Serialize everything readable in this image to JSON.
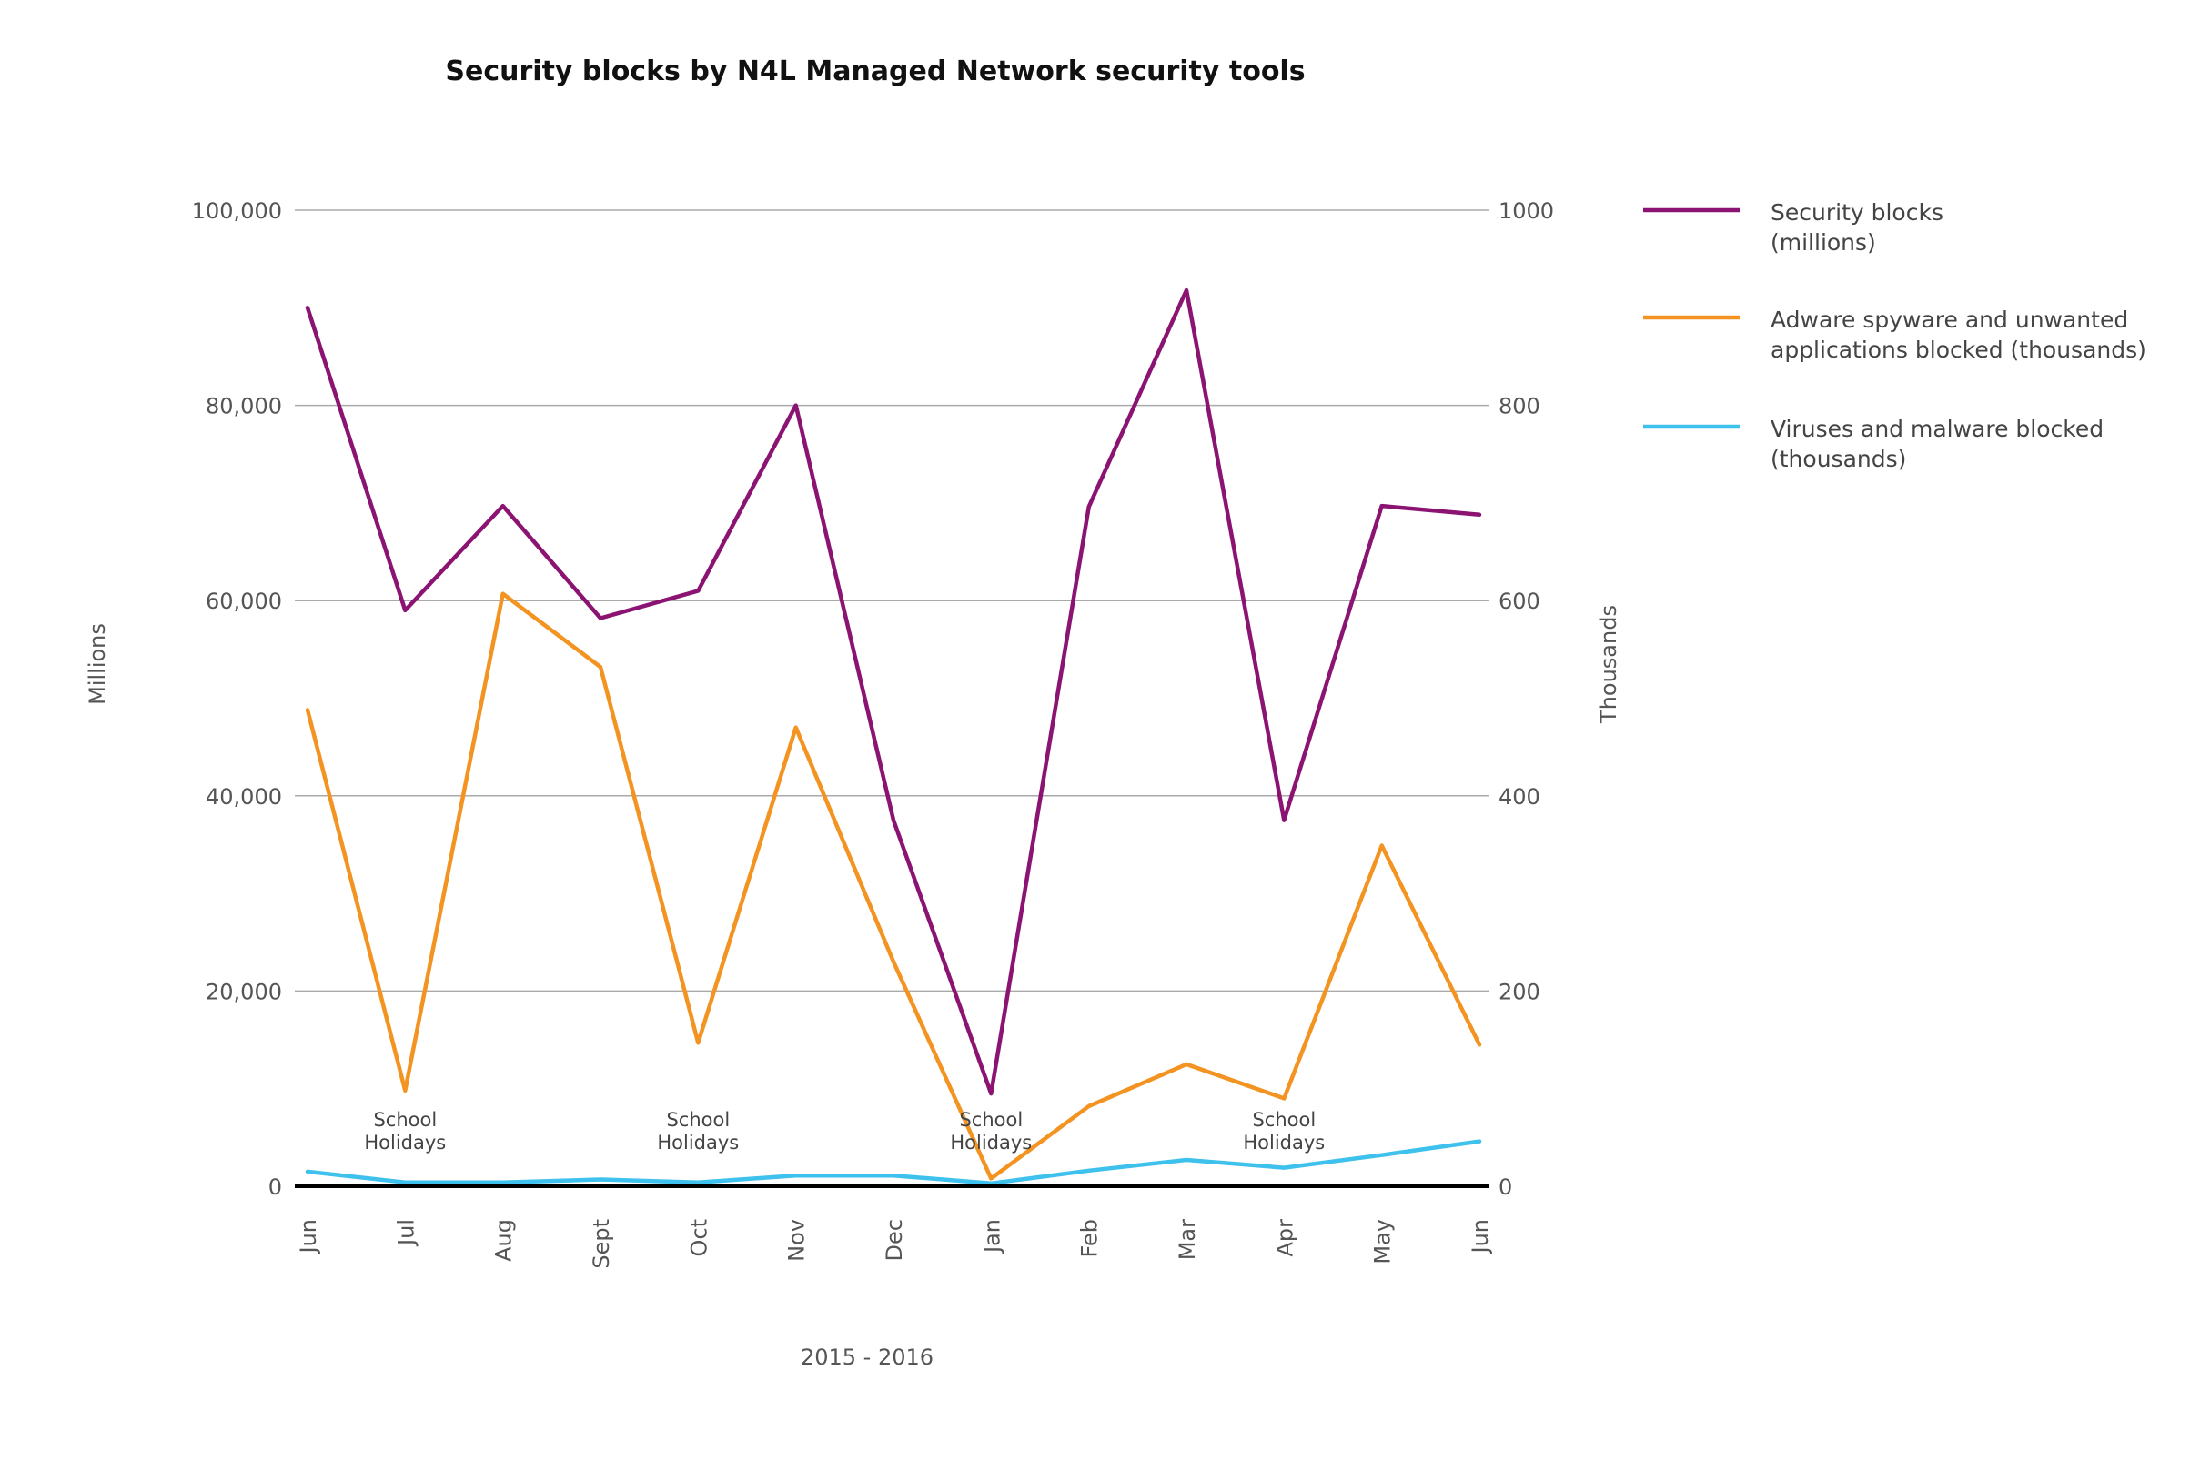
{
  "chart_data": {
    "type": "line",
    "title": "Security blocks by N4L Managed Network security tools",
    "xlabel": "2015 - 2016",
    "ylabel_left": "Millions",
    "ylabel_right": "Thousands",
    "categories": [
      "Jun",
      "Jul",
      "Aug",
      "Sept",
      "Oct",
      "Nov",
      "Dec",
      "Jan",
      "Feb",
      "Mar",
      "Apr",
      "May",
      "Jun"
    ],
    "ylim_left": [
      0,
      100000
    ],
    "ylim_right": [
      0,
      1000
    ],
    "yticks_left": [
      "0",
      "20,000",
      "40,000",
      "60,000",
      "80,000",
      "100,000"
    ],
    "yticks_right": [
      "0",
      "200",
      "400",
      "600",
      "800",
      "1000"
    ],
    "grid": true,
    "legend_position": "right",
    "series": [
      {
        "name": "Security blocks (millions)",
        "legend_lines": [
          "Security blocks",
          "(millions)"
        ],
        "axis": "left",
        "color": "#8b1372",
        "values": [
          90000,
          59000,
          69700,
          58200,
          61000,
          80000,
          37500,
          9500,
          69600,
          91800,
          37500,
          69700,
          68800
        ]
      },
      {
        "name": "Adware spyware and unwanted applications blocked (thousands)",
        "legend_lines": [
          "Adware spyware and unwanted",
          "applications  blocked (thousands)"
        ],
        "axis": "right",
        "color": "#f39422",
        "values": [
          488,
          98,
          607,
          532,
          147,
          470,
          230,
          8,
          82,
          125,
          90,
          349,
          145
        ]
      },
      {
        "name": "Viruses and malware blocked (thousands)",
        "legend_lines": [
          "Viruses and malware blocked",
          "(thousands)"
        ],
        "axis": "right",
        "color": "#3ec1ec",
        "values": [
          15,
          4,
          4,
          7,
          4,
          11,
          11,
          3,
          16,
          27,
          19,
          32,
          46
        ]
      }
    ],
    "annotations": [
      {
        "category_index": 1,
        "lines": [
          "School",
          "Holidays"
        ]
      },
      {
        "category_index": 4,
        "lines": [
          "School",
          "Holidays"
        ]
      },
      {
        "category_index": 7,
        "lines": [
          "School",
          "Holidays"
        ]
      },
      {
        "category_index": 10,
        "lines": [
          "School",
          "Holidays"
        ]
      }
    ]
  }
}
